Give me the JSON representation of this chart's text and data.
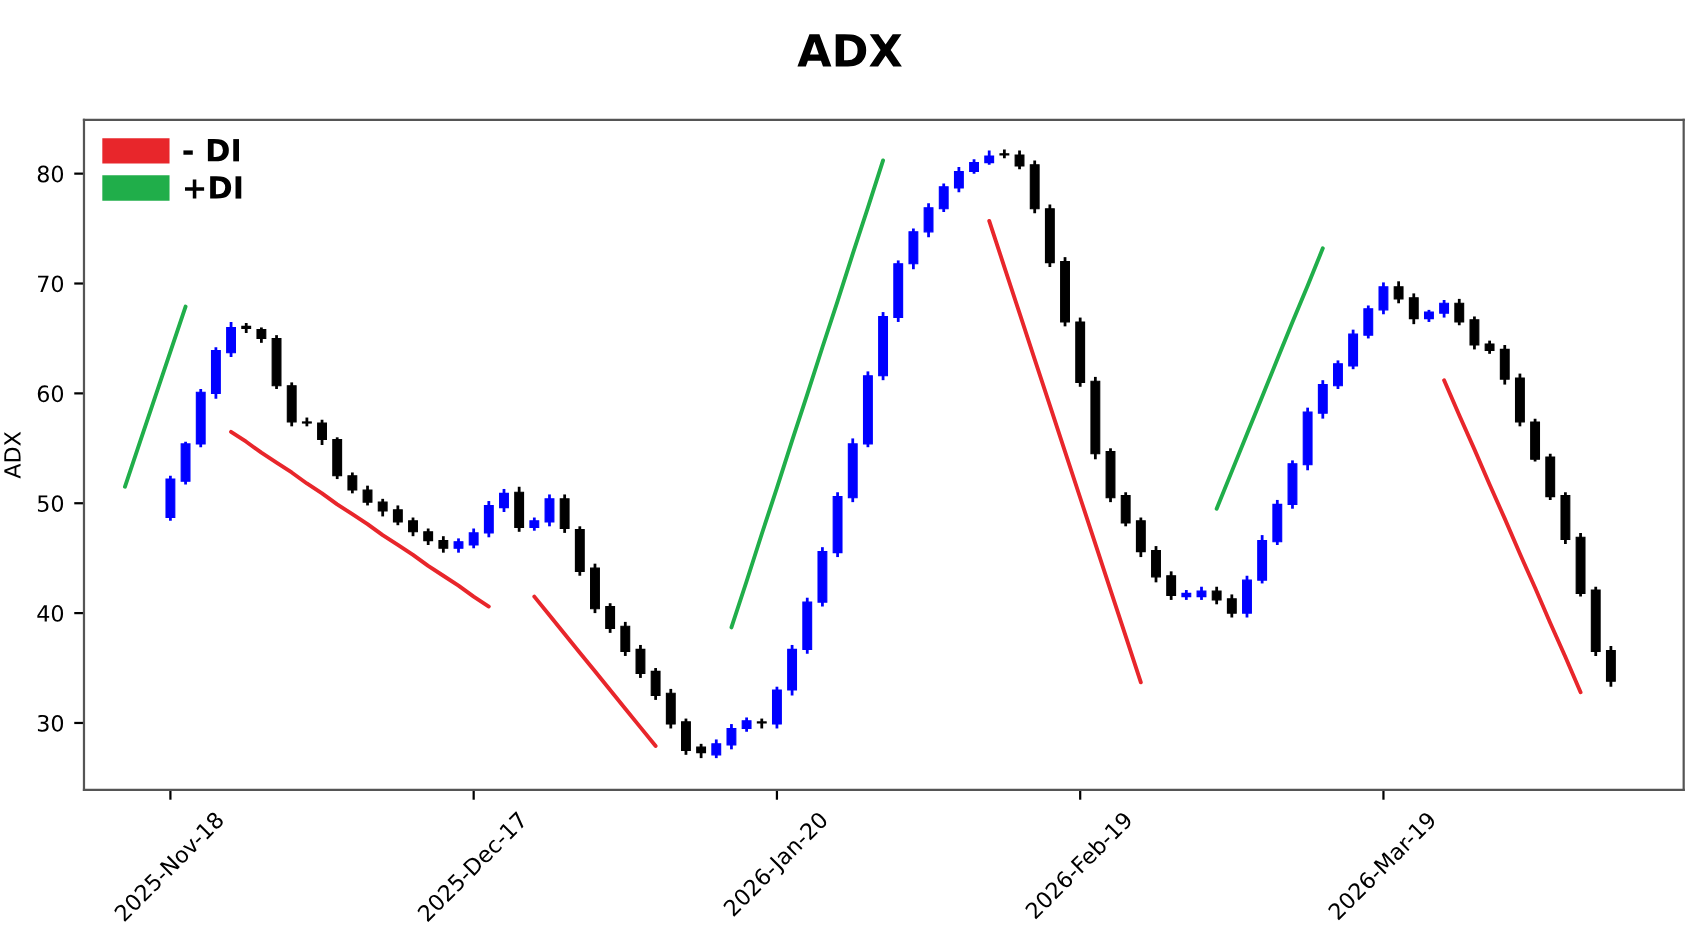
{
  "chart_data": {
    "type": "candlestick",
    "title": "ADX",
    "ylabel": "ADX",
    "categories": [
      null,
      null,
      null,
      "2025-Nov-18",
      null,
      null,
      null,
      null,
      null,
      null,
      null,
      null,
      null,
      null,
      null,
      null,
      null,
      null,
      null,
      null,
      null,
      null,
      null,
      "2025-Dec-17",
      null,
      null,
      null,
      null,
      null,
      null,
      null,
      null,
      null,
      null,
      null,
      null,
      null,
      null,
      null,
      null,
      null,
      null,
      null,
      "2026-Jan-20",
      null,
      null,
      null,
      null,
      null,
      null,
      null,
      null,
      null,
      null,
      null,
      null,
      null,
      null,
      null,
      null,
      null,
      null,
      null,
      "2026-Feb-19",
      null,
      null,
      null,
      null,
      null,
      null,
      null,
      null,
      null,
      null,
      null,
      null,
      null,
      null,
      null,
      null,
      null,
      null,
      null,
      "2026-Mar-19",
      null,
      null,
      null,
      null,
      null,
      null,
      null,
      null,
      null,
      null,
      null,
      null,
      null,
      null,
      null
    ],
    "ohlc": [
      null,
      null,
      null,
      [
        48.7,
        52.5,
        48.4,
        52.2
      ],
      [
        52.0,
        55.6,
        51.7,
        55.4
      ],
      [
        55.4,
        60.4,
        55.1,
        60.1
      ],
      [
        60.0,
        64.2,
        59.5,
        63.9
      ],
      [
        63.7,
        66.5,
        63.3,
        66.0
      ],
      [
        66.1,
        66.4,
        65.5,
        65.9
      ],
      [
        65.8,
        66.0,
        64.6,
        65.0
      ],
      [
        65.0,
        65.3,
        60.4,
        60.7
      ],
      [
        60.7,
        61.0,
        57.0,
        57.4
      ],
      [
        57.4,
        57.8,
        57.0,
        57.3
      ],
      [
        57.3,
        57.6,
        55.3,
        55.8
      ],
      [
        55.8,
        56.0,
        52.2,
        52.5
      ],
      [
        52.5,
        52.8,
        50.9,
        51.2
      ],
      [
        51.2,
        51.6,
        49.8,
        50.1
      ],
      [
        50.1,
        50.4,
        48.8,
        49.3
      ],
      [
        49.4,
        49.8,
        48.0,
        48.3
      ],
      [
        48.4,
        48.7,
        47.0,
        47.4
      ],
      [
        47.4,
        47.7,
        46.2,
        46.6
      ],
      [
        46.6,
        47.0,
        45.5,
        45.9
      ],
      [
        45.9,
        46.8,
        45.5,
        46.5
      ],
      [
        46.2,
        47.7,
        45.9,
        47.3
      ],
      [
        47.3,
        50.2,
        46.9,
        49.8
      ],
      [
        49.6,
        51.3,
        49.2,
        50.9
      ],
      [
        51.0,
        51.5,
        47.4,
        47.8
      ],
      [
        47.8,
        48.7,
        47.5,
        48.4
      ],
      [
        48.3,
        50.8,
        47.9,
        50.4
      ],
      [
        50.4,
        50.8,
        47.3,
        47.7
      ],
      [
        47.6,
        47.9,
        43.4,
        43.8
      ],
      [
        44.1,
        44.5,
        40.0,
        40.4
      ],
      [
        40.6,
        40.9,
        38.2,
        38.6
      ],
      [
        38.8,
        39.2,
        36.1,
        36.5
      ],
      [
        36.7,
        37.1,
        34.1,
        34.5
      ],
      [
        34.7,
        35.0,
        32.1,
        32.5
      ],
      [
        32.7,
        33.1,
        29.5,
        29.9
      ],
      [
        30.1,
        30.4,
        27.1,
        27.5
      ],
      [
        27.8,
        28.1,
        26.8,
        27.3
      ],
      [
        27.1,
        28.5,
        26.8,
        28.1
      ],
      [
        28.0,
        29.9,
        27.6,
        29.5
      ],
      [
        29.5,
        30.5,
        29.2,
        30.2
      ],
      [
        30.1,
        30.4,
        29.5,
        30.0
      ],
      [
        29.9,
        33.3,
        29.5,
        33.0
      ],
      [
        33.0,
        37.1,
        32.5,
        36.7
      ],
      [
        36.7,
        41.4,
        36.3,
        41.0
      ],
      [
        41.0,
        46.0,
        40.6,
        45.6
      ],
      [
        45.5,
        51.0,
        45.1,
        50.6
      ],
      [
        50.5,
        55.9,
        50.1,
        55.4
      ],
      [
        55.4,
        62.0,
        55.1,
        61.6
      ],
      [
        61.6,
        67.4,
        61.2,
        67.0
      ],
      [
        66.9,
        72.1,
        66.5,
        71.8
      ],
      [
        71.8,
        75.0,
        71.3,
        74.7
      ],
      [
        74.7,
        77.3,
        74.2,
        76.9
      ],
      [
        76.8,
        79.1,
        76.5,
        78.8
      ],
      [
        78.7,
        80.6,
        78.3,
        80.2
      ],
      [
        80.2,
        81.3,
        80.0,
        81.0
      ],
      [
        81.0,
        82.1,
        80.8,
        81.6
      ],
      [
        81.8,
        82.2,
        81.4,
        81.7
      ],
      [
        81.7,
        82.1,
        80.4,
        80.7
      ],
      [
        80.8,
        81.2,
        76.4,
        76.8
      ],
      [
        76.8,
        77.2,
        71.5,
        71.9
      ],
      [
        72.0,
        72.4,
        66.1,
        66.5
      ],
      [
        66.5,
        66.9,
        60.6,
        61.0
      ],
      [
        61.1,
        61.5,
        54.0,
        54.5
      ],
      [
        54.7,
        55.0,
        50.1,
        50.5
      ],
      [
        50.7,
        51.0,
        47.9,
        48.2
      ],
      [
        48.4,
        48.7,
        45.1,
        45.6
      ],
      [
        45.7,
        46.1,
        42.8,
        43.3
      ],
      [
        43.4,
        43.8,
        41.2,
        41.6
      ],
      [
        41.5,
        42.1,
        41.2,
        41.8
      ],
      [
        41.5,
        42.4,
        41.2,
        42.0
      ],
      [
        42.0,
        42.4,
        40.8,
        41.2
      ],
      [
        41.3,
        41.7,
        39.6,
        40.0
      ],
      [
        40.0,
        43.4,
        39.6,
        43.0
      ],
      [
        43.0,
        47.1,
        42.7,
        46.6
      ],
      [
        46.5,
        50.3,
        46.2,
        49.9
      ],
      [
        49.9,
        53.9,
        49.5,
        53.6
      ],
      [
        53.5,
        58.7,
        53.0,
        58.3
      ],
      [
        58.2,
        61.2,
        57.7,
        60.8
      ],
      [
        60.7,
        63.0,
        60.4,
        62.7
      ],
      [
        62.5,
        65.8,
        62.2,
        65.4
      ],
      [
        65.3,
        68.0,
        65.0,
        67.7
      ],
      [
        67.6,
        70.1,
        67.2,
        69.7
      ],
      [
        69.7,
        70.2,
        68.2,
        68.6
      ],
      [
        68.7,
        69.1,
        66.3,
        66.8
      ],
      [
        66.8,
        67.6,
        66.5,
        67.4
      ],
      [
        67.3,
        68.5,
        66.9,
        68.2
      ],
      [
        68.2,
        68.6,
        66.2,
        66.5
      ],
      [
        66.7,
        67.0,
        64.0,
        64.4
      ],
      [
        64.5,
        64.8,
        63.6,
        63.9
      ],
      [
        64.0,
        64.4,
        60.8,
        61.3
      ],
      [
        61.4,
        61.8,
        57.0,
        57.4
      ],
      [
        57.4,
        57.7,
        53.8,
        54.0
      ],
      [
        54.2,
        54.5,
        50.3,
        50.6
      ],
      [
        50.7,
        51.0,
        46.3,
        46.7
      ],
      [
        46.9,
        47.3,
        41.5,
        41.8
      ],
      [
        42.1,
        42.4,
        36.1,
        36.5
      ],
      [
        36.6,
        37.0,
        33.3,
        33.8
      ]
    ],
    "colors": [
      null,
      null,
      null,
      "#0000ff",
      "#0000ff",
      "#0000ff",
      "#0000ff",
      "#0000ff",
      "#000000",
      "#000000",
      "#000000",
      "#000000",
      "#000000",
      "#000000",
      "#000000",
      "#000000",
      "#000000",
      "#000000",
      "#000000",
      "#000000",
      "#000000",
      "#000000",
      "#0000ff",
      "#0000ff",
      "#0000ff",
      "#0000ff",
      "#000000",
      "#0000ff",
      "#0000ff",
      "#000000",
      "#000000",
      "#000000",
      "#000000",
      "#000000",
      "#000000",
      "#000000",
      "#000000",
      "#000000",
      "#000000",
      "#0000ff",
      "#0000ff",
      "#0000ff",
      "#000000",
      "#0000ff",
      "#0000ff",
      "#0000ff",
      "#0000ff",
      "#0000ff",
      "#0000ff",
      "#0000ff",
      "#0000ff",
      "#0000ff",
      "#0000ff",
      "#0000ff",
      "#0000ff",
      "#0000ff",
      "#0000ff",
      "#0000ff",
      "#000000",
      "#000000",
      "#000000",
      "#000000",
      "#000000",
      "#000000",
      "#000000",
      "#000000",
      "#000000",
      "#000000",
      "#000000",
      "#000000",
      "#0000ff",
      "#0000ff",
      "#000000",
      "#000000",
      "#0000ff",
      "#0000ff",
      "#0000ff",
      "#0000ff",
      "#0000ff",
      "#0000ff",
      "#0000ff",
      "#0000ff",
      "#0000ff",
      "#0000ff",
      "#000000",
      "#000000",
      "#0000ff",
      "#0000ff",
      "#000000",
      "#000000",
      "#000000",
      "#000000",
      "#000000",
      "#000000",
      "#000000",
      "#000000",
      "#000000",
      "#000000",
      "#000000"
    ],
    "series": [
      {
        "name": "- DI",
        "type": "line",
        "color": "#e8262b",
        "values": [
          null,
          null,
          null,
          null,
          null,
          null,
          null,
          56.5,
          55.6,
          54.6,
          53.7,
          52.8,
          51.8,
          50.9,
          49.9,
          49.0,
          48.1,
          47.1,
          46.2,
          45.3,
          44.3,
          43.4,
          42.5,
          41.5,
          40.6,
          null,
          null,
          41.5,
          39.8,
          38.1,
          36.4,
          34.7,
          33.0,
          31.3,
          29.6,
          27.9,
          null,
          null,
          null,
          null,
          null,
          null,
          null,
          null,
          null,
          null,
          null,
          null,
          null,
          null,
          null,
          null,
          null,
          null,
          null,
          null,
          null,
          75.7,
          71.5,
          67.3,
          63.1,
          58.9,
          54.7,
          50.5,
          46.3,
          42.1,
          37.9,
          33.7,
          null,
          null,
          null,
          null,
          null,
          null,
          null,
          null,
          null,
          null,
          null,
          null,
          null,
          null,
          null,
          null,
          null,
          null,
          null,
          61.2,
          58.0,
          54.9,
          51.7,
          48.6,
          45.4,
          42.3,
          39.1,
          36.0,
          32.8,
          null,
          null
        ]
      },
      {
        "name": "+DI",
        "type": "line",
        "color": "#20ae4a",
        "values": [
          51.5,
          55.6,
          59.7,
          63.8,
          67.9,
          null,
          null,
          null,
          null,
          null,
          null,
          null,
          null,
          null,
          null,
          null,
          null,
          null,
          null,
          null,
          null,
          null,
          null,
          null,
          null,
          null,
          null,
          null,
          null,
          null,
          null,
          null,
          null,
          null,
          null,
          null,
          null,
          null,
          null,
          null,
          38.7,
          42.9,
          47.2,
          51.4,
          55.7,
          59.9,
          64.2,
          68.4,
          72.7,
          76.9,
          81.2,
          null,
          null,
          null,
          null,
          null,
          null,
          null,
          null,
          null,
          null,
          null,
          null,
          null,
          null,
          null,
          null,
          null,
          null,
          null,
          null,
          null,
          49.5,
          52.9,
          56.3,
          59.7,
          63.1,
          66.5,
          69.8,
          73.2,
          null,
          null,
          null,
          null,
          null,
          null,
          null,
          null,
          null,
          null,
          null,
          null,
          null,
          null,
          null,
          null,
          null,
          null,
          null
        ]
      }
    ],
    "ylim": [
      23.9,
      84.9
    ],
    "yticks": [
      30,
      40,
      50,
      60,
      70,
      80
    ],
    "legend": "top left"
  }
}
